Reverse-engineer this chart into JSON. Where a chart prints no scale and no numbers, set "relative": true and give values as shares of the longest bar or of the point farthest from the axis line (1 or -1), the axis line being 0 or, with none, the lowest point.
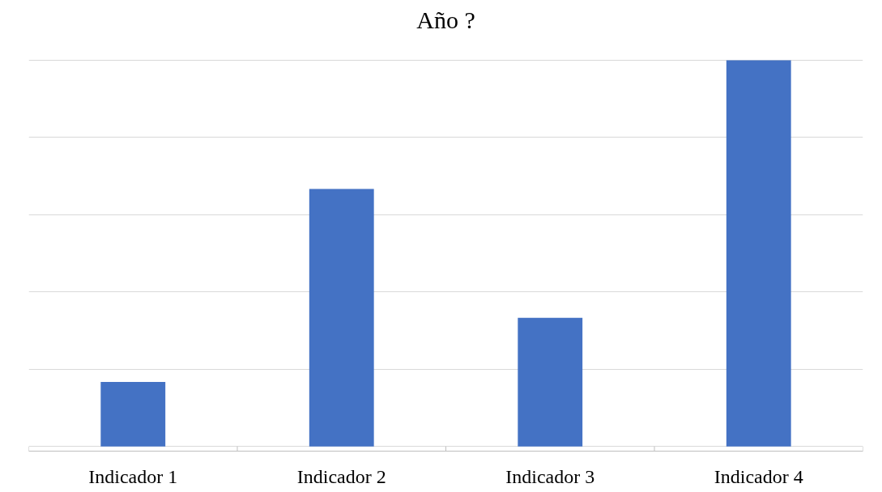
{
  "chart_data": {
    "type": "bar",
    "title": "Año ?",
    "categories": [
      "Indicador 1",
      "Indicador 2",
      "Indicador 3",
      "Indicador 4"
    ],
    "values": [
      0.167,
      0.667,
      0.333,
      1
    ],
    "color": "#4472c4",
    "relative": true,
    "grid": "y"
  }
}
